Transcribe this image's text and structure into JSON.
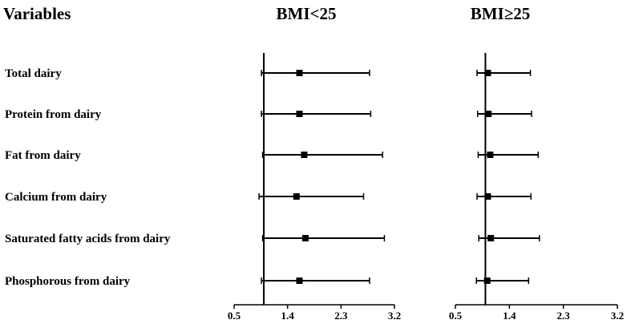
{
  "chart_data": {
    "type": "forest",
    "row_header": "Variables",
    "variables": [
      "Total dairy",
      "Protein from dairy",
      "Fat from dairy",
      "Calcium from dairy",
      "Saturated fatty acids from dairy",
      "Phosphorous from dairy"
    ],
    "panels": [
      {
        "title": "BMI<25",
        "reference_line": 1,
        "xlim": [
          0.5,
          3.2
        ],
        "ticks": [
          "0.5",
          "1.4",
          "2.3",
          "3.2"
        ],
        "points": [
          {
            "estimate": 1.6,
            "lower": 0.96,
            "upper": 2.78
          },
          {
            "estimate": 1.6,
            "lower": 0.96,
            "upper": 2.8
          },
          {
            "estimate": 1.68,
            "lower": 0.98,
            "upper": 3.0
          },
          {
            "estimate": 1.55,
            "lower": 0.92,
            "upper": 2.68
          },
          {
            "estimate": 1.7,
            "lower": 0.98,
            "upper": 3.03
          },
          {
            "estimate": 1.6,
            "lower": 0.96,
            "upper": 2.78
          }
        ]
      },
      {
        "title": "BMI≥25",
        "reference_line": 1,
        "xlim": [
          0.5,
          3.2
        ],
        "ticks": [
          "0.5",
          "1.4",
          "2.3",
          "3.2"
        ],
        "points": [
          {
            "estimate": 1.04,
            "lower": 0.86,
            "upper": 1.75
          },
          {
            "estimate": 1.05,
            "lower": 0.87,
            "upper": 1.77
          },
          {
            "estimate": 1.08,
            "lower": 0.88,
            "upper": 1.88
          },
          {
            "estimate": 1.04,
            "lower": 0.86,
            "upper": 1.76
          },
          {
            "estimate": 1.09,
            "lower": 0.89,
            "upper": 1.9
          },
          {
            "estimate": 1.03,
            "lower": 0.85,
            "upper": 1.72
          }
        ]
      }
    ]
  }
}
